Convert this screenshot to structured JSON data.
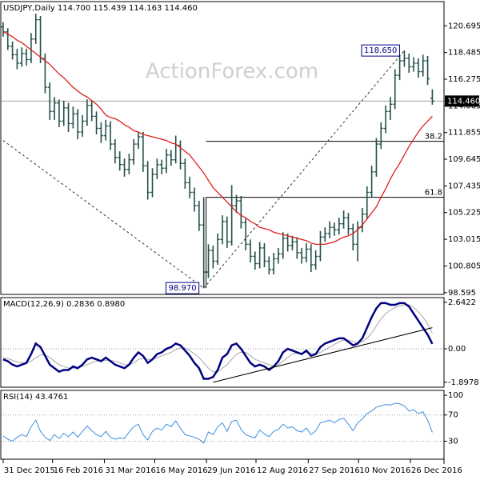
{
  "chart_data": {
    "type": "ohlc",
    "title": "USDJPY,Daily  114.700 115.439 114.163 114.460",
    "watermark": "ActionForex.com",
    "color": "#24504a",
    "x": [
      0,
      1,
      2,
      3,
      4,
      5,
      6,
      7,
      8,
      9,
      10,
      11,
      12,
      13,
      14,
      15,
      16,
      17,
      18,
      19,
      20,
      21,
      22,
      23,
      24,
      25,
      26,
      27,
      28,
      29,
      30,
      31,
      32,
      33,
      34,
      35,
      36,
      37,
      38,
      39,
      40,
      41,
      42,
      43,
      44,
      45,
      46,
      47,
      48,
      49,
      50,
      51,
      52,
      53,
      54,
      55,
      56,
      57,
      58,
      59,
      60,
      61,
      62,
      63,
      64,
      65,
      66,
      67,
      68,
      69,
      70,
      71,
      72,
      73,
      74,
      75,
      76,
      77,
      78,
      79,
      80,
      81,
      82,
      83,
      84,
      85,
      86,
      87,
      88,
      89,
      90,
      91,
      92
    ],
    "xlim": [
      -0.5,
      94.5
    ],
    "xticks": [
      {
        "value": 0,
        "label": "31 Dec 2015"
      },
      {
        "value": 10.6,
        "label": "16 Feb 2016"
      },
      {
        "value": 21.7,
        "label": "31 Mar 2016"
      },
      {
        "value": 32.5,
        "label": "16 May 2016"
      },
      {
        "value": 43.6,
        "label": "29 Jun 2016"
      },
      {
        "value": 54.2,
        "label": "12 Aug 2016"
      },
      {
        "value": 65.4,
        "label": "27 Sep 2016"
      },
      {
        "value": 76.2,
        "label": "10 Nov 2016"
      },
      {
        "value": 87.3,
        "label": "26 Dec 2016"
      }
    ],
    "ylim": [
      98.45,
      122.7
    ],
    "yticks": [
      120.695,
      118.485,
      116.275,
      114.065,
      111.855,
      109.645,
      107.435,
      105.225,
      103.015,
      100.805,
      98.595
    ],
    "ohlc": [
      [
        120.6,
        121.0,
        119.8,
        120.2
      ],
      [
        120.2,
        120.5,
        118.7,
        119.0
      ],
      [
        119.0,
        119.4,
        117.9,
        118.3
      ],
      [
        118.3,
        118.8,
        117.1,
        117.6
      ],
      [
        117.6,
        118.9,
        117.3,
        118.4
      ],
      [
        118.4,
        118.8,
        117.4,
        117.9
      ],
      [
        117.9,
        120.1,
        117.6,
        119.6
      ],
      [
        119.6,
        121.7,
        119.2,
        121.2
      ],
      [
        121.2,
        121.5,
        117.6,
        118.0
      ],
      [
        118.0,
        118.4,
        115.1,
        115.6
      ],
      [
        115.6,
        116.0,
        112.9,
        113.6
      ],
      [
        113.6,
        114.8,
        112.9,
        114.3
      ],
      [
        114.3,
        114.6,
        112.3,
        112.8
      ],
      [
        112.8,
        114.5,
        112.4,
        113.9
      ],
      [
        113.9,
        114.3,
        111.9,
        112.6
      ],
      [
        112.6,
        114.0,
        112.2,
        113.4
      ],
      [
        113.4,
        113.8,
        111.3,
        111.9
      ],
      [
        111.9,
        113.3,
        111.5,
        112.8
      ],
      [
        112.8,
        114.6,
        112.4,
        114.1
      ],
      [
        114.1,
        114.5,
        112.8,
        113.2
      ],
      [
        113.2,
        113.6,
        111.7,
        112.2
      ],
      [
        112.2,
        112.7,
        111.0,
        111.6
      ],
      [
        111.6,
        112.9,
        111.2,
        112.4
      ],
      [
        112.4,
        112.8,
        110.4,
        110.9
      ],
      [
        110.9,
        111.3,
        109.3,
        109.8
      ],
      [
        109.8,
        110.3,
        108.7,
        109.2
      ],
      [
        109.2,
        109.7,
        108.2,
        108.8
      ],
      [
        108.8,
        110.1,
        108.4,
        109.6
      ],
      [
        109.6,
        111.3,
        109.2,
        110.9
      ],
      [
        110.9,
        111.9,
        110.5,
        111.5
      ],
      [
        111.5,
        111.9,
        108.6,
        109.1
      ],
      [
        109.1,
        109.5,
        106.3,
        106.9
      ],
      [
        106.9,
        108.9,
        106.5,
        108.4
      ],
      [
        108.4,
        109.7,
        108.0,
        109.2
      ],
      [
        109.2,
        109.6,
        108.4,
        108.9
      ],
      [
        108.9,
        110.5,
        108.5,
        110.0
      ],
      [
        110.0,
        110.4,
        109.1,
        109.6
      ],
      [
        109.6,
        111.6,
        109.3,
        110.8
      ],
      [
        110.8,
        111.2,
        108.8,
        109.3
      ],
      [
        109.3,
        109.7,
        107.2,
        107.7
      ],
      [
        107.7,
        108.2,
        106.4,
        106.9
      ],
      [
        106.9,
        107.3,
        105.3,
        105.8
      ],
      [
        105.8,
        106.2,
        103.7,
        104.2
      ],
      [
        104.2,
        106.5,
        98.97,
        100.3
      ],
      [
        100.3,
        102.6,
        99.8,
        102.1
      ],
      [
        102.1,
        102.5,
        100.6,
        101.2
      ],
      [
        101.2,
        103.5,
        100.9,
        103.0
      ],
      [
        103.0,
        105.0,
        102.6,
        104.5
      ],
      [
        104.5,
        104.9,
        102.3,
        102.8
      ],
      [
        102.8,
        107.5,
        102.5,
        105.8
      ],
      [
        105.8,
        106.7,
        105.2,
        106.2
      ],
      [
        106.2,
        106.6,
        103.9,
        104.4
      ],
      [
        104.4,
        104.8,
        102.1,
        102.6
      ],
      [
        102.6,
        103.0,
        101.1,
        101.6
      ],
      [
        101.6,
        102.0,
        100.5,
        101.0
      ],
      [
        101.0,
        102.8,
        100.6,
        102.3
      ],
      [
        102.3,
        102.7,
        100.7,
        101.2
      ],
      [
        101.2,
        101.6,
        100.1,
        100.5
      ],
      [
        100.5,
        101.9,
        100.1,
        101.4
      ],
      [
        101.4,
        102.3,
        101.0,
        101.8
      ],
      [
        101.8,
        103.6,
        101.4,
        103.1
      ],
      [
        103.1,
        103.5,
        102.0,
        102.5
      ],
      [
        102.5,
        103.3,
        102.1,
        102.8
      ],
      [
        102.8,
        103.2,
        101.4,
        101.9
      ],
      [
        101.9,
        102.3,
        101.0,
        101.5
      ],
      [
        101.5,
        102.7,
        101.1,
        102.2
      ],
      [
        102.2,
        102.6,
        100.3,
        100.9
      ],
      [
        100.9,
        102.1,
        100.5,
        101.6
      ],
      [
        101.6,
        103.7,
        101.2,
        103.2
      ],
      [
        103.2,
        104.0,
        102.8,
        103.5
      ],
      [
        103.5,
        104.5,
        103.1,
        104.0
      ],
      [
        104.0,
        104.4,
        103.3,
        103.8
      ],
      [
        103.8,
        104.8,
        103.4,
        104.3
      ],
      [
        104.3,
        105.4,
        103.9,
        104.8
      ],
      [
        104.8,
        105.2,
        103.4,
        103.9
      ],
      [
        103.9,
        104.3,
        102.1,
        102.6
      ],
      [
        102.6,
        104.5,
        101.2,
        104.0
      ],
      [
        104.0,
        105.6,
        103.6,
        105.1
      ],
      [
        105.1,
        107.4,
        104.7,
        106.9
      ],
      [
        106.9,
        109.1,
        106.5,
        108.6
      ],
      [
        108.6,
        111.4,
        108.2,
        110.9
      ],
      [
        110.9,
        112.7,
        110.5,
        112.2
      ],
      [
        112.2,
        114.1,
        111.8,
        113.6
      ],
      [
        113.6,
        114.8,
        112.9,
        114.2
      ],
      [
        114.2,
        117.1,
        113.8,
        116.6
      ],
      [
        116.6,
        118.3,
        116.2,
        117.8
      ],
      [
        117.8,
        118.65,
        117.3,
        118.0
      ],
      [
        118.0,
        118.4,
        116.8,
        117.3
      ],
      [
        117.3,
        118.1,
        116.9,
        117.6
      ],
      [
        117.6,
        118.0,
        116.4,
        116.9
      ],
      [
        116.9,
        118.3,
        116.5,
        117.8
      ],
      [
        117.8,
        118.2,
        115.8,
        116.3
      ],
      [
        114.7,
        115.439,
        114.163,
        114.46
      ]
    ],
    "ma": {
      "color": "#e0201b",
      "values": [
        120.2,
        120.0,
        119.8,
        119.5,
        119.3,
        119.0,
        118.7,
        118.4,
        118.1,
        117.8,
        117.5,
        117.1,
        116.7,
        116.4,
        116.0,
        115.6,
        115.3,
        115.0,
        114.8,
        114.5,
        114.2,
        113.8,
        113.3,
        113.1,
        113.0,
        112.8,
        112.5,
        112.3,
        112.0,
        111.9,
        111.7,
        111.6,
        111.5,
        111.4,
        111.3,
        111.2,
        111.0,
        110.9,
        110.6,
        110.3,
        110.0,
        109.5,
        109.0,
        108.5,
        107.9,
        107.3,
        106.9,
        106.5,
        106.1,
        105.7,
        105.3,
        105.0,
        104.8,
        104.5,
        104.3,
        104.0,
        103.9,
        103.8,
        103.6,
        103.5,
        103.4,
        103.3,
        103.2,
        103.1,
        103.0,
        102.9,
        102.7,
        102.6,
        102.6,
        102.6,
        102.7,
        102.8,
        103.0,
        103.2,
        103.3,
        103.5,
        103.8,
        104.2,
        104.7,
        105.2,
        105.7,
        106.5,
        107.2,
        108.0,
        108.7,
        109.3,
        110.0,
        110.7,
        111.3,
        111.9,
        112.4,
        112.8,
        113.2
      ]
    },
    "last": {
      "value": 114.46,
      "label": "114.460"
    },
    "extremes": [
      {
        "x": 86,
        "value": 118.65,
        "label": "118.650"
      },
      {
        "x": 43,
        "value": 98.97,
        "label": "98.970"
      }
    ],
    "fib": [
      {
        "x": 43.5,
        "value": 111.13,
        "label": "38.2"
      },
      {
        "x": 43.5,
        "value": 106.49,
        "label": "61.8"
      }
    ],
    "trendlines": [
      {
        "x": [
          0,
          43
        ],
        "y": [
          111.2,
          98.97
        ]
      },
      {
        "x": [
          43,
          86
        ],
        "y": [
          98.97,
          118.65
        ]
      }
    ],
    "panels": [
      {
        "type": "line",
        "title": "MACD(12,26,9) 0.2836 0.8980",
        "ylim": [
          -2.18,
          2.91
        ],
        "yticks": [
          2.6422,
          {
            "value": 0,
            "label": "0.00"
          },
          -1.8978
        ],
        "levels": [
          0
        ],
        "lines": [
          {
            "color": "#000080",
            "width": 2.5,
            "values": [
              -0.6,
              -0.7,
              -0.9,
              -1.0,
              -0.9,
              -0.8,
              -0.3,
              0.3,
              0.1,
              -0.4,
              -0.9,
              -1.1,
              -1.3,
              -1.2,
              -1.2,
              -1.0,
              -1.1,
              -0.9,
              -0.6,
              -0.5,
              -0.6,
              -0.7,
              -0.5,
              -0.7,
              -0.9,
              -1.0,
              -1.1,
              -0.9,
              -0.5,
              -0.2,
              -0.4,
              -0.8,
              -0.6,
              -0.3,
              -0.2,
              0.0,
              0.1,
              0.3,
              0.2,
              -0.1,
              -0.4,
              -0.8,
              -1.1,
              -1.7,
              -1.7,
              -1.6,
              -1.2,
              -0.5,
              -0.3,
              0.2,
              0.3,
              0.0,
              -0.4,
              -0.8,
              -1.0,
              -0.9,
              -1.0,
              -1.2,
              -1.0,
              -0.7,
              -0.2,
              0.0,
              -0.1,
              -0.2,
              -0.3,
              -0.1,
              -0.4,
              -0.3,
              0.1,
              0.3,
              0.4,
              0.5,
              0.6,
              0.6,
              0.4,
              0.2,
              0.3,
              0.6,
              1.2,
              1.8,
              2.3,
              2.6,
              2.6,
              2.5,
              2.5,
              2.6,
              2.6,
              2.4,
              2.0,
              1.6,
              1.2,
              0.8,
              0.2836
            ]
          },
          {
            "color": "#a8a8a8",
            "width": 1,
            "values": [
              -0.5,
              -0.55,
              -0.65,
              -0.75,
              -0.8,
              -0.8,
              -0.7,
              -0.5,
              -0.35,
              -0.35,
              -0.5,
              -0.7,
              -0.9,
              -1.0,
              -1.1,
              -1.1,
              -1.1,
              -1.0,
              -0.9,
              -0.8,
              -0.7,
              -0.7,
              -0.65,
              -0.65,
              -0.7,
              -0.8,
              -0.9,
              -0.9,
              -0.8,
              -0.6,
              -0.55,
              -0.6,
              -0.6,
              -0.5,
              -0.4,
              -0.3,
              -0.2,
              -0.05,
              0.05,
              0.05,
              -0.1,
              -0.3,
              -0.5,
              -0.8,
              -1.1,
              -1.3,
              -1.3,
              -1.1,
              -0.9,
              -0.6,
              -0.3,
              -0.2,
              -0.2,
              -0.4,
              -0.6,
              -0.7,
              -0.8,
              -0.9,
              -1.0,
              -0.9,
              -0.7,
              -0.5,
              -0.3,
              -0.25,
              -0.25,
              -0.2,
              -0.25,
              -0.3,
              -0.2,
              -0.05,
              0.1,
              0.25,
              0.4,
              0.5,
              0.5,
              0.4,
              0.35,
              0.4,
              0.6,
              0.9,
              1.3,
              1.7,
              2.0,
              2.2,
              2.35,
              2.45,
              2.5,
              2.5,
              2.35,
              2.1,
              1.8,
              1.4,
              0.898
            ]
          }
        ],
        "trendline": {
          "x": [
            45,
            92
          ],
          "y": [
            -1.9,
            1.2
          ]
        }
      },
      {
        "type": "line",
        "title": "RSI(14) 43.4761",
        "ylim": [
          2.5,
          107.5
        ],
        "yticks": [
          100,
          70,
          30
        ],
        "levels": [
          70,
          30
        ],
        "lines": [
          {
            "color": "#3d8fe0",
            "width": 1,
            "values": [
              38,
              33,
              30,
              36,
              40,
              37,
              52,
              62,
              45,
              36,
              31,
              40,
              34,
              42,
              37,
              44,
              36,
              45,
              53,
              46,
              40,
              37,
              45,
              36,
              33,
              35,
              34,
              44,
              52,
              56,
              40,
              32,
              45,
              50,
              47,
              56,
              52,
              61,
              50,
              40,
              38,
              36,
              33,
              27,
              44,
              40,
              52,
              58,
              45,
              60,
              62,
              48,
              40,
              37,
              35,
              47,
              41,
              37,
              45,
              48,
              56,
              50,
              52,
              46,
              44,
              50,
              40,
              46,
              58,
              60,
              62,
              58,
              63,
              65,
              56,
              46,
              58,
              64,
              72,
              76,
              82,
              84,
              86,
              85,
              88,
              87,
              84,
              76,
              78,
              72,
              75,
              62,
              43.4761
            ]
          }
        ]
      }
    ]
  }
}
